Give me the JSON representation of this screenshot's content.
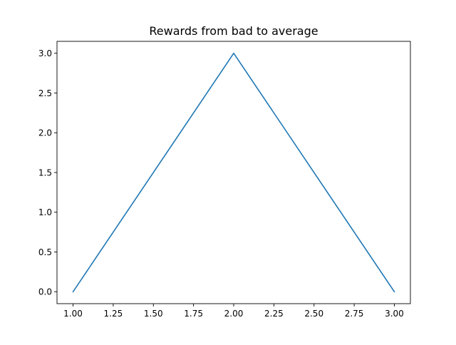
{
  "chart_data": {
    "type": "line",
    "title": "Rewards from bad to average",
    "xlabel": "",
    "ylabel": "",
    "x": [
      1.0,
      2.0,
      3.0
    ],
    "series": [
      {
        "values": [
          0.0,
          3.0,
          0.0
        ],
        "color": "#1f77b4"
      }
    ],
    "xlim": [
      0.9,
      3.1
    ],
    "ylim": [
      -0.15,
      3.15
    ],
    "x_ticks": [
      1.0,
      1.25,
      1.5,
      1.75,
      2.0,
      2.25,
      2.5,
      2.75,
      3.0
    ],
    "x_tick_labels": [
      "1.00",
      "1.25",
      "1.50",
      "1.75",
      "2.00",
      "2.25",
      "2.50",
      "2.75",
      "3.00"
    ],
    "y_ticks": [
      0.0,
      0.5,
      1.0,
      1.5,
      2.0,
      2.5,
      3.0
    ],
    "y_tick_labels": [
      "0.0",
      "0.5",
      "1.0",
      "1.5",
      "2.0",
      "2.5",
      "3.0"
    ],
    "grid": false,
    "legend": "none"
  }
}
